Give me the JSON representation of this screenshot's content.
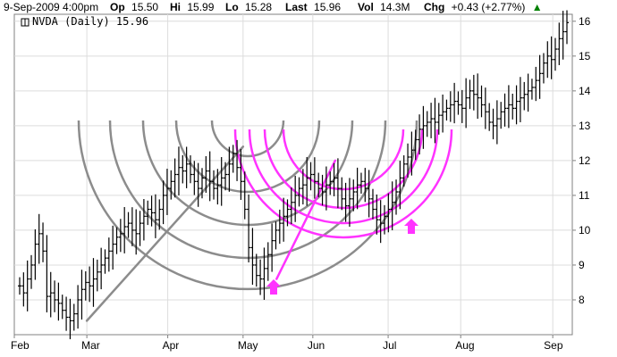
{
  "header": {
    "timestamp": "9-Sep-2009 4:00pm",
    "open_label": "Op",
    "open_value": "15.50",
    "high_label": "Hi",
    "high_value": "15.99",
    "low_label": "Lo",
    "low_value": "15.28",
    "last_label": "Last",
    "last_value": "15.96",
    "vol_label": "Vol",
    "vol_value": "14.3M",
    "chg_label": "Chg",
    "chg_value": "+0.43 (+2.77%)",
    "chg_arrow": "▲"
  },
  "legend": {
    "text": "NVDA (Daily) 15.96"
  },
  "colors": {
    "background": "#ffffff",
    "plot_background": "#ffffff",
    "grid": "#dcdcdc",
    "price_bars": "#000000",
    "gray_arcs": "#8c8c8c",
    "magenta_arcs": "#ff33ff",
    "arrow": "#ff33ff",
    "change_positive": "#008000",
    "header_label": "#000000",
    "axis_border": "#808080"
  },
  "chart_data": {
    "type": "bar",
    "ticker": "NVDA",
    "interval": "Daily",
    "last": 15.96,
    "x_labels": [
      "Feb",
      "Mar",
      "Apr",
      "May",
      "Jun",
      "Jul",
      "Aug",
      "Sep"
    ],
    "y_ticks": [
      8,
      9,
      10,
      11,
      12,
      13,
      14,
      15,
      16
    ],
    "ylim": [
      7.0,
      16.2
    ],
    "y_axis_position": "right",
    "grid": true,
    "series": [
      {
        "closes": [
          8.4,
          8.2,
          8.6,
          9.0,
          9.6,
          9.9,
          9.4,
          8.1,
          8.2,
          8.0,
          7.9,
          7.7,
          7.5,
          7.4,
          7.6,
          8.0,
          8.3,
          8.5,
          8.4,
          8.6,
          8.8,
          9.0,
          9.2,
          9.4,
          9.6,
          9.8,
          9.9,
          10.1,
          10.2,
          10.0,
          9.9,
          10.2,
          10.4,
          10.6,
          10.5,
          10.3,
          10.6,
          11.0,
          11.2,
          11.4,
          11.6,
          11.8,
          11.7,
          11.9,
          11.6,
          11.4,
          11.2,
          11.5,
          11.7,
          11.4,
          11.2,
          11.3,
          11.5,
          11.6,
          11.9,
          12.2,
          11.8,
          11.4,
          10.6,
          9.5,
          9.0,
          8.7,
          8.6,
          8.9,
          9.3,
          9.7,
          10.0,
          10.2,
          10.4,
          10.6,
          10.8,
          11.0,
          11.2,
          11.3,
          11.5,
          11.6,
          11.4,
          11.2,
          11.1,
          11.3,
          11.4,
          11.5,
          11.2,
          10.9,
          10.7,
          10.9,
          11.1,
          11.3,
          11.4,
          11.2,
          10.9,
          10.6,
          10.3,
          10.2,
          10.4,
          10.6,
          10.8,
          11.1,
          11.5,
          11.9,
          12.1,
          12.3,
          12.6,
          12.9,
          13.0,
          13.1,
          13.2,
          13.1,
          13.3,
          13.4,
          13.5,
          13.6,
          13.7,
          13.6,
          13.5,
          13.8,
          14.0,
          13.9,
          13.8,
          13.6,
          13.4,
          13.1,
          13.0,
          13.2,
          13.4,
          13.5,
          13.6,
          13.5,
          13.7,
          13.8,
          13.9,
          14.0,
          14.1,
          14.3,
          14.5,
          14.8,
          15.0,
          14.9,
          15.2,
          15.5,
          15.7,
          15.96
        ]
      }
    ],
    "drawings": {
      "gray_trendline": {
        "start": [
          0.13,
          7.4
        ],
        "end": [
          0.41,
          12.4
        ]
      },
      "magenta_trendline": {
        "start": [
          0.47,
          8.6
        ],
        "end": [
          0.575,
          12.0
        ]
      },
      "gray_arcs_count": 5,
      "magenta_arcs_count": 4,
      "arrows_count": 2
    }
  }
}
